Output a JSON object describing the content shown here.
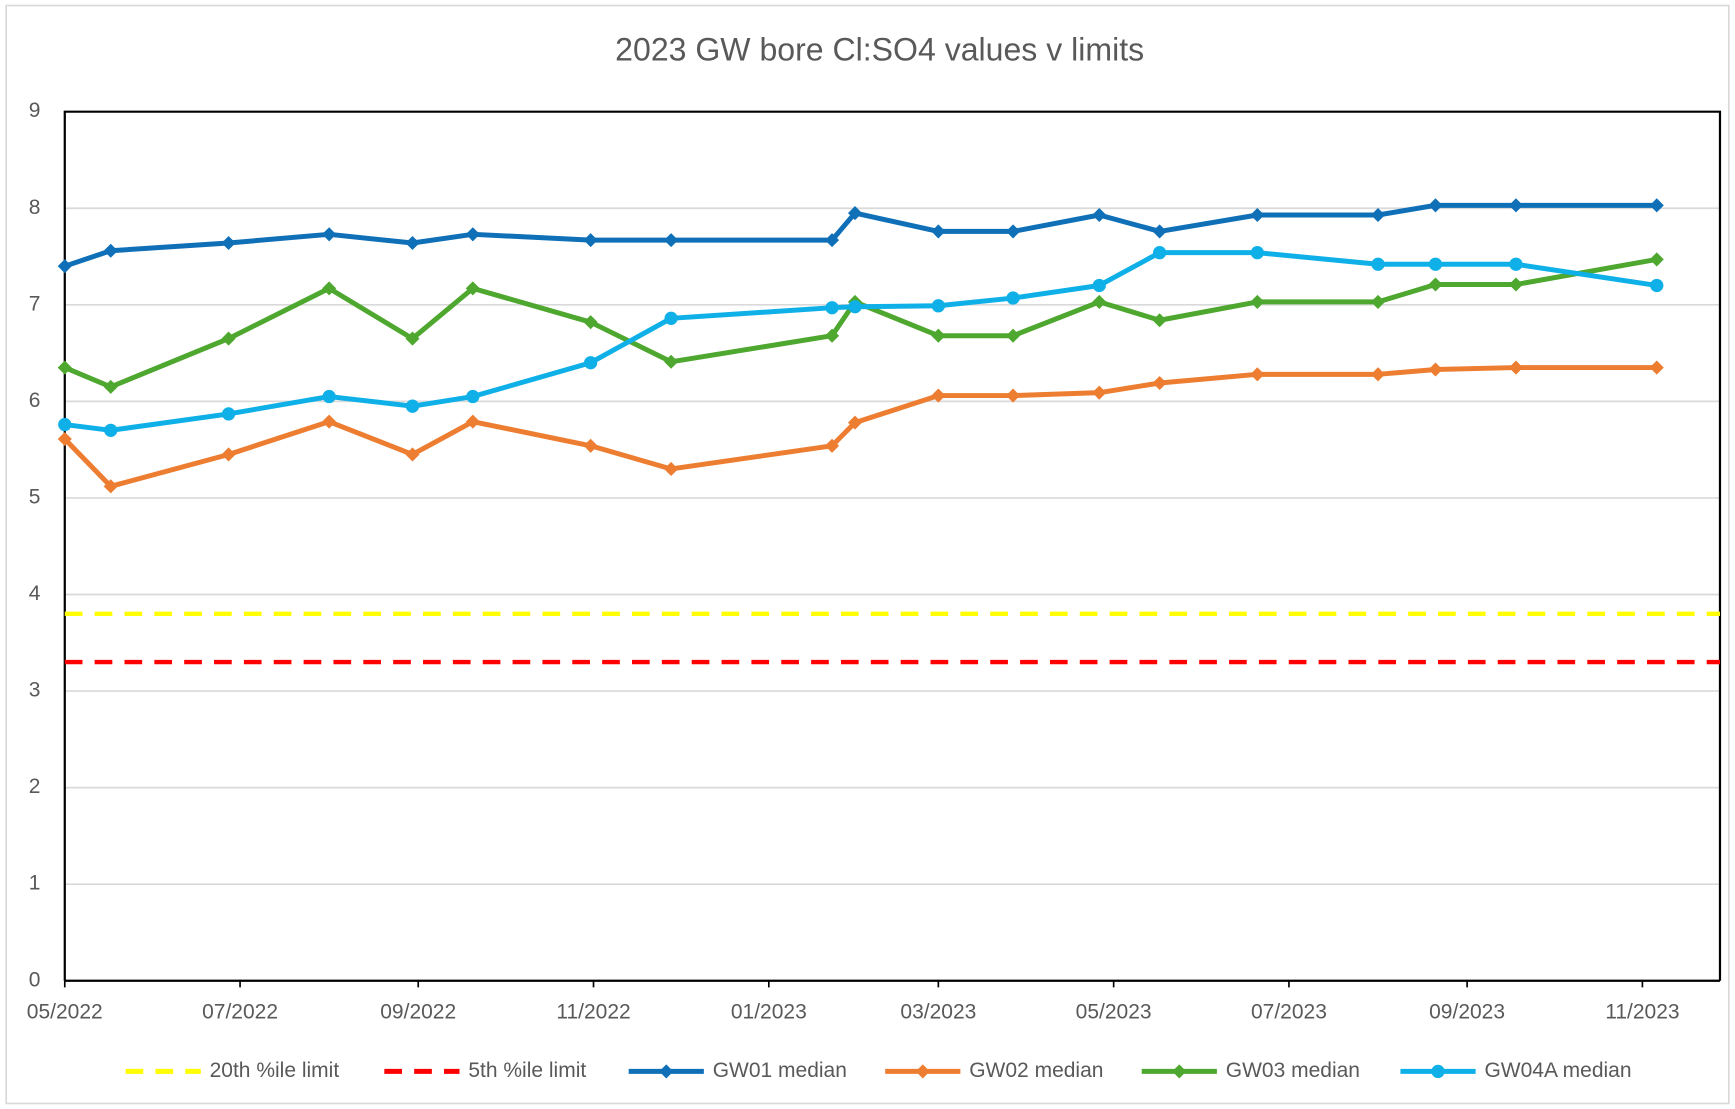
{
  "chart_data": {
    "type": "line",
    "title": "2023 GW bore Cl:SO4 values v limits",
    "x": [
      "2022-05-01",
      "2022-05-17",
      "2022-06-27",
      "2022-08-01",
      "2022-08-30",
      "2022-09-20",
      "2022-10-31",
      "2022-11-28",
      "2023-01-23",
      "2023-01-31",
      "2023-03-01",
      "2023-03-27",
      "2023-04-26",
      "2023-05-17",
      "2023-06-20",
      "2023-08-01",
      "2023-08-21",
      "2023-09-18",
      "2023-11-06"
    ],
    "xlim": [
      "2022-05-01",
      "2023-11-28"
    ],
    "xticks": [
      {
        "value": "2022-05-01",
        "label": "05/2022"
      },
      {
        "value": "2022-07-01",
        "label": "07/2022"
      },
      {
        "value": "2022-09-01",
        "label": "09/2022"
      },
      {
        "value": "2022-11-01",
        "label": "11/2022"
      },
      {
        "value": "2023-01-01",
        "label": "01/2023"
      },
      {
        "value": "2023-03-01",
        "label": "03/2023"
      },
      {
        "value": "2023-05-01",
        "label": "05/2023"
      },
      {
        "value": "2023-07-01",
        "label": "07/2023"
      },
      {
        "value": "2023-09-01",
        "label": "09/2023"
      },
      {
        "value": "2023-11-01",
        "label": "11/2023"
      }
    ],
    "ylim": [
      0,
      9
    ],
    "yticks": [
      0,
      1,
      2,
      3,
      4,
      5,
      6,
      7,
      8,
      9
    ],
    "grid": true,
    "legend": "bottom",
    "limits": [
      {
        "name": "20th %ile limit",
        "color": "#ffff00",
        "value": 3.8
      },
      {
        "name": "5th %ile limit",
        "color": "#ff0000",
        "value": 3.3
      }
    ],
    "series": [
      {
        "name": "GW01 median",
        "color": "#0f6fb7",
        "marker": "square",
        "values": [
          7.4,
          7.56,
          7.64,
          7.73,
          7.64,
          7.73,
          7.67,
          7.67,
          7.67,
          7.95,
          7.76,
          7.76,
          7.93,
          7.76,
          7.93,
          7.93,
          8.03,
          8.03,
          8.03
        ]
      },
      {
        "name": "GW02 median",
        "color": "#ed7d31",
        "marker": "square",
        "values": [
          5.61,
          5.12,
          5.45,
          5.79,
          5.45,
          5.79,
          5.54,
          5.3,
          5.54,
          5.78,
          6.06,
          6.06,
          6.09,
          6.19,
          6.28,
          6.28,
          6.33,
          6.35,
          6.35
        ]
      },
      {
        "name": "GW03 median",
        "color": "#4ea72e",
        "marker": "square",
        "values": [
          6.35,
          6.15,
          6.65,
          7.17,
          6.65,
          7.17,
          6.82,
          6.41,
          6.68,
          7.03,
          6.68,
          6.68,
          7.03,
          6.84,
          7.03,
          7.03,
          7.21,
          7.21,
          7.47
        ]
      },
      {
        "name": "GW04A median",
        "color": "#0fb0e8",
        "marker": "circle",
        "values": [
          5.76,
          5.7,
          5.87,
          6.05,
          5.95,
          6.05,
          6.4,
          6.86,
          6.97,
          6.98,
          6.99,
          7.07,
          7.2,
          7.54,
          7.54,
          7.42,
          7.42,
          7.42,
          7.2
        ]
      }
    ]
  }
}
